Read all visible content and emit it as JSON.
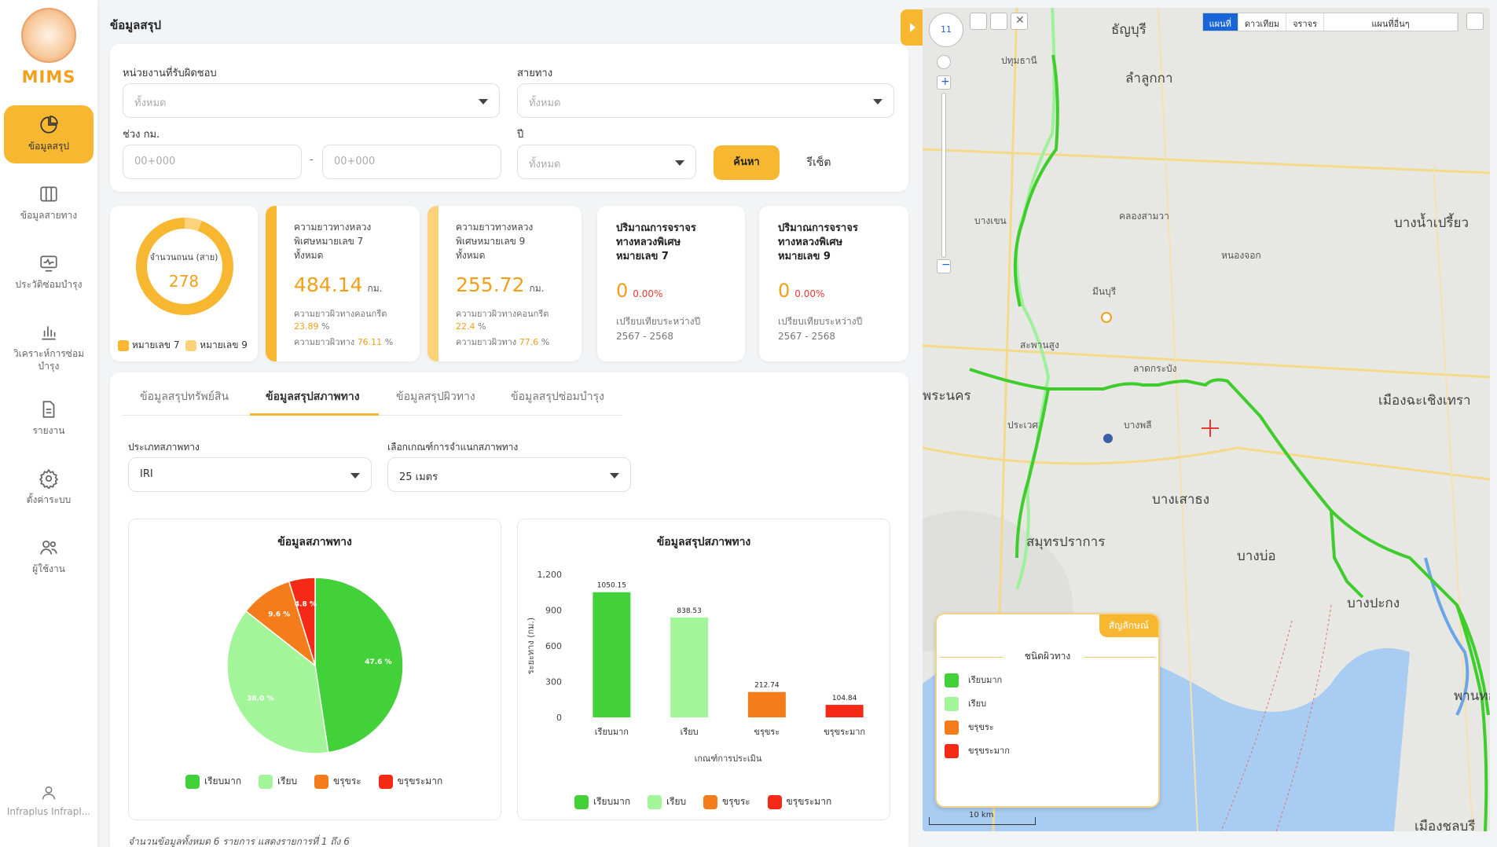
{
  "app": {
    "logo_text": "MIMS",
    "page_title": "ข้อมูลสรุป"
  },
  "sidebar": {
    "items": [
      {
        "label": "ข้อมูลสรุป",
        "icon": "pie-chart-icon",
        "active": true
      },
      {
        "label": "ข้อมูลสายทาง",
        "icon": "map-book-icon",
        "active": false
      },
      {
        "label": "ประวัติซ่อมบำรุง",
        "icon": "monitor-pulse-icon",
        "active": false
      },
      {
        "label": "วิเคราะห์การซ่อมบำรุง",
        "icon": "bar-chart-icon",
        "active": false
      },
      {
        "label": "รายงาน",
        "icon": "document-icon",
        "active": false
      },
      {
        "label": "ตั้งค่าระบบ",
        "icon": "gear-icon",
        "active": false
      },
      {
        "label": "ผู้ใช้งาน",
        "icon": "users-icon",
        "active": false
      }
    ],
    "user_name": "Infraplus Infrapl..."
  },
  "filters": {
    "agency_label": "หน่วยงานที่รับผิดชอบ",
    "agency_value": "ทั้งหมด",
    "route_label": "สายทาง",
    "route_value": "ทั้งหมด",
    "km_label": "ช่วง กม.",
    "km_from_placeholder": "00+000",
    "km_to_placeholder": "00+000",
    "km_dash": "-",
    "year_label": "ปี",
    "year_value": "ทั้งหมด",
    "search_label": "ค้นหา",
    "reset_label": "รีเซ็ต"
  },
  "stats": {
    "donut": {
      "label": "จำนวนถนน (สาย)",
      "value": "278",
      "legend": [
        "หมายเลข 7",
        "หมายเลข 9"
      ]
    },
    "m7": {
      "label_line1": "ความยาวทางหลวง",
      "label_line2": "พิเศษหมายเลข 7",
      "label_line3": "ทั้งหมด",
      "value": "484.14",
      "unit": "กม.",
      "concrete_label": "ความยาวผิวทางคอนกรีต",
      "concrete_value": "23.89",
      "pct_sign": "%",
      "asphalt_label": "ความยาวผิวทาง",
      "asphalt_value": "76.11"
    },
    "m9": {
      "label_line1": "ความยาวทางหลวง",
      "label_line2": "พิเศษหมายเลข 9",
      "label_line3": "ทั้งหมด",
      "value": "255.72",
      "unit": "กม.",
      "concrete_label": "ความยาวผิวทางคอนกรีต",
      "concrete_value": "22.4",
      "pct_sign": "%",
      "asphalt_label": "ความยาวผิวทาง",
      "asphalt_value": "77.6"
    },
    "traffic7": {
      "title_line1": "ปริมาณการจราจร",
      "title_line2": "ทางหลวงพิเศษ",
      "title_line3": "หมายเลข 7",
      "value": "0",
      "pct": "0.00%",
      "compare_label": "เปรียบเทียบระหว่างปี",
      "years": "2567 - 2568"
    },
    "traffic9": {
      "title_line1": "ปริมาณการจราจร",
      "title_line2": "ทางหลวงพิเศษ",
      "title_line3": "หมายเลข 9",
      "value": "0",
      "pct": "0.00%",
      "compare_label": "เปรียบเทียบระหว่างปี",
      "years": "2567 - 2568"
    }
  },
  "tabs": [
    {
      "label": "ข้อมูลสรุปทรัพย์สิน"
    },
    {
      "label": "ข้อมูลสรุปสภาพทาง",
      "active": true
    },
    {
      "label": "ข้อมูลสรุปผิวทาง"
    },
    {
      "label": "ข้อมูลสรุปซ่อมบำรุง"
    }
  ],
  "condition_filters": {
    "type_label": "ประเภทสภาพทาง",
    "type_value": "IRI",
    "criteria_label": "เลือกเกณฑ์การจำแนกสภาพทาง",
    "criteria_value": "25 เมตร"
  },
  "colors": {
    "very_good": "#43d13a",
    "good": "#a3f59a",
    "fair": "#f57c1a",
    "poor": "#f42a16",
    "accent": "#f7b731"
  },
  "chart_data": [
    {
      "type": "pie",
      "title": "ข้อมูลสภาพทาง",
      "categories": [
        "เรียบมาก",
        "เรียบ",
        "ขรุขระ",
        "ขรุขระมาก"
      ],
      "values": [
        47.6,
        38.0,
        9.6,
        4.8
      ],
      "value_labels": [
        "47.6 %",
        "38.0 %",
        "9.6 %",
        "4.8 %"
      ],
      "legend": "bottom"
    },
    {
      "type": "bar",
      "title": "ข้อมูลสรุปสภาพทาง",
      "categories": [
        "เรียบมาก",
        "เรียบ",
        "ขรุขระ",
        "ขรุขระมาก"
      ],
      "values": [
        1050.15,
        838.53,
        212.74,
        104.84
      ],
      "value_labels": [
        "1050.15",
        "838.53",
        "212.74",
        "104.84"
      ],
      "xlabel": "เกณฑ์การประเมิน",
      "ylabel": "ระยะทาง (กม.)",
      "ylim": [
        0,
        1200
      ],
      "yticks": [
        "0",
        "300",
        "600",
        "900",
        "1,200"
      ],
      "legend": "bottom"
    }
  ],
  "footer_note": "จำนวนข้อมูลทั้งหมด 6 รายการ แสดงรายการที่ 1 ถึง 6",
  "map": {
    "tabs": [
      "แผนที่",
      "ดาวเทียม",
      "จราจร"
    ],
    "layer_select": "แผนที่อื่นๆ",
    "legend_header": "สัญลักษณ์",
    "legend_title": "ชนิดผิวทาง",
    "legend_items": [
      "เรียบมาก",
      "เรียบ",
      "ขรุขระ",
      "ขรุขระมาก"
    ],
    "scale": "10 km",
    "zoom": "11",
    "places": {
      "p1": "ธัญบุรี",
      "p2": "ลำลูกกา",
      "p3": "ปทุมธานี",
      "p4": "บางน้ำเปรี้ยว",
      "p5": "พระนคร",
      "p6": "เมืองฉะเชิงเทรา",
      "p7": "สมุทรปราการ",
      "p8": "บางบ่อ",
      "p9": "บางเสาธง",
      "p10": "บางปะกง",
      "p11": "พานทอง",
      "p12": "เมืองชลบุรี",
      "p13": "หนองจอก",
      "p14": "มีนบุรี",
      "p15": "ลาดกระบัง",
      "p16": "บางพลี",
      "p17": "คลองสามวา",
      "p18": "บางเขน",
      "p19": "ประเวศ",
      "p20": "สะพานสูง"
    }
  }
}
